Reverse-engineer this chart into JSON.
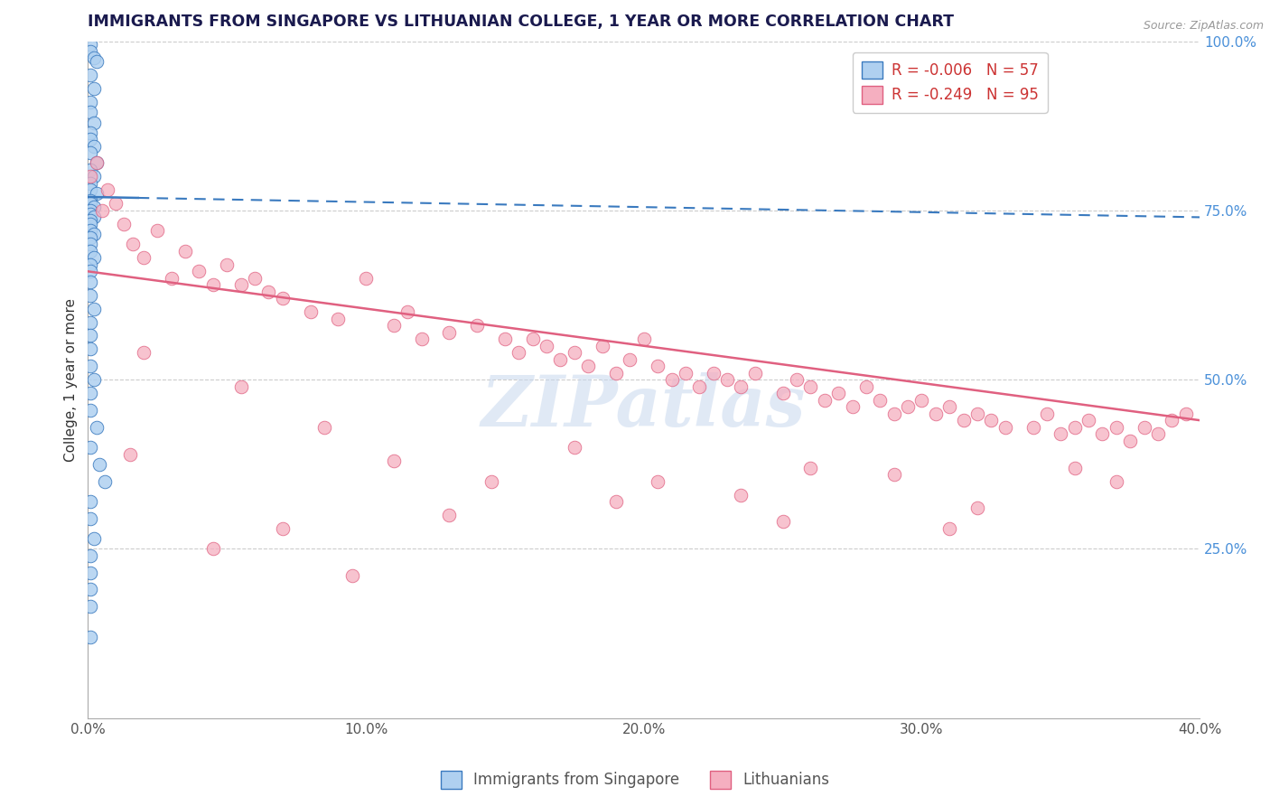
{
  "title": "IMMIGRANTS FROM SINGAPORE VS LITHUANIAN COLLEGE, 1 YEAR OR MORE CORRELATION CHART",
  "source_text": "Source: ZipAtlas.com",
  "ylabel": "College, 1 year or more",
  "legend_label_1": "Immigrants from Singapore",
  "legend_label_2": "Lithuanians",
  "R1": -0.006,
  "N1": 57,
  "R2": -0.249,
  "N2": 95,
  "color1": "#afd0f0",
  "color2": "#f5afc0",
  "trendline1_color": "#3a7abf",
  "trendline2_color": "#e06080",
  "watermark": "ZIPatlas",
  "xlim": [
    0.0,
    0.4
  ],
  "ylim": [
    0.0,
    1.0
  ],
  "xticks": [
    0.0,
    0.1,
    0.2,
    0.3,
    0.4
  ],
  "xticklabels": [
    "0.0%",
    "10.0%",
    "20.0%",
    "30.0%",
    "40.0%"
  ],
  "yticks_right": [
    0.25,
    0.5,
    0.75,
    1.0
  ],
  "ytick_right_labels": [
    "25.0%",
    "50.0%",
    "75.0%",
    "100.0%"
  ],
  "blue_x": [
    0.001,
    0.001,
    0.002,
    0.003,
    0.001,
    0.002,
    0.001,
    0.001,
    0.002,
    0.001,
    0.001,
    0.002,
    0.001,
    0.003,
    0.001,
    0.002,
    0.001,
    0.001,
    0.003,
    0.001,
    0.001,
    0.002,
    0.001,
    0.001,
    0.002,
    0.001,
    0.001,
    0.001,
    0.002,
    0.001,
    0.001,
    0.001,
    0.002,
    0.001,
    0.001,
    0.001,
    0.001,
    0.002,
    0.001,
    0.001,
    0.001,
    0.001,
    0.002,
    0.001,
    0.001,
    0.003,
    0.001,
    0.004,
    0.006,
    0.001,
    0.001,
    0.002,
    0.001,
    0.001,
    0.001,
    0.001,
    0.001
  ],
  "blue_y": [
    0.995,
    0.985,
    0.975,
    0.97,
    0.95,
    0.93,
    0.91,
    0.895,
    0.88,
    0.865,
    0.855,
    0.845,
    0.835,
    0.82,
    0.81,
    0.8,
    0.79,
    0.78,
    0.775,
    0.765,
    0.76,
    0.755,
    0.75,
    0.745,
    0.74,
    0.735,
    0.73,
    0.72,
    0.715,
    0.71,
    0.7,
    0.69,
    0.68,
    0.67,
    0.66,
    0.645,
    0.625,
    0.605,
    0.585,
    0.565,
    0.545,
    0.52,
    0.5,
    0.48,
    0.455,
    0.43,
    0.4,
    0.375,
    0.35,
    0.32,
    0.295,
    0.265,
    0.24,
    0.215,
    0.19,
    0.165,
    0.12
  ],
  "pink_x": [
    0.001,
    0.003,
    0.005,
    0.007,
    0.01,
    0.013,
    0.016,
    0.02,
    0.025,
    0.03,
    0.035,
    0.04,
    0.045,
    0.05,
    0.055,
    0.06,
    0.065,
    0.07,
    0.08,
    0.09,
    0.1,
    0.11,
    0.115,
    0.12,
    0.13,
    0.14,
    0.15,
    0.155,
    0.16,
    0.165,
    0.17,
    0.175,
    0.18,
    0.185,
    0.19,
    0.195,
    0.2,
    0.205,
    0.21,
    0.215,
    0.22,
    0.225,
    0.23,
    0.235,
    0.24,
    0.25,
    0.255,
    0.26,
    0.265,
    0.27,
    0.275,
    0.28,
    0.285,
    0.29,
    0.295,
    0.3,
    0.305,
    0.31,
    0.315,
    0.32,
    0.325,
    0.33,
    0.34,
    0.345,
    0.35,
    0.355,
    0.36,
    0.365,
    0.37,
    0.375,
    0.38,
    0.385,
    0.39,
    0.395,
    0.02,
    0.055,
    0.085,
    0.11,
    0.145,
    0.175,
    0.205,
    0.235,
    0.26,
    0.29,
    0.32,
    0.355,
    0.015,
    0.07,
    0.13,
    0.19,
    0.25,
    0.31,
    0.37,
    0.045,
    0.095
  ],
  "pink_y": [
    0.8,
    0.82,
    0.75,
    0.78,
    0.76,
    0.73,
    0.7,
    0.68,
    0.72,
    0.65,
    0.69,
    0.66,
    0.64,
    0.67,
    0.64,
    0.65,
    0.63,
    0.62,
    0.6,
    0.59,
    0.65,
    0.58,
    0.6,
    0.56,
    0.57,
    0.58,
    0.56,
    0.54,
    0.56,
    0.55,
    0.53,
    0.54,
    0.52,
    0.55,
    0.51,
    0.53,
    0.56,
    0.52,
    0.5,
    0.51,
    0.49,
    0.51,
    0.5,
    0.49,
    0.51,
    0.48,
    0.5,
    0.49,
    0.47,
    0.48,
    0.46,
    0.49,
    0.47,
    0.45,
    0.46,
    0.47,
    0.45,
    0.46,
    0.44,
    0.45,
    0.44,
    0.43,
    0.43,
    0.45,
    0.42,
    0.43,
    0.44,
    0.42,
    0.43,
    0.41,
    0.43,
    0.42,
    0.44,
    0.45,
    0.54,
    0.49,
    0.43,
    0.38,
    0.35,
    0.4,
    0.35,
    0.33,
    0.37,
    0.36,
    0.31,
    0.37,
    0.39,
    0.28,
    0.3,
    0.32,
    0.29,
    0.28,
    0.35,
    0.25,
    0.21
  ],
  "blue_trend_x0": 0.0,
  "blue_trend_x1": 0.4,
  "blue_trend_y0": 0.77,
  "blue_trend_y1": 0.74,
  "pink_trend_x0": 0.0,
  "pink_trend_x1": 0.4,
  "pink_trend_y0": 0.66,
  "pink_trend_y1": 0.44
}
